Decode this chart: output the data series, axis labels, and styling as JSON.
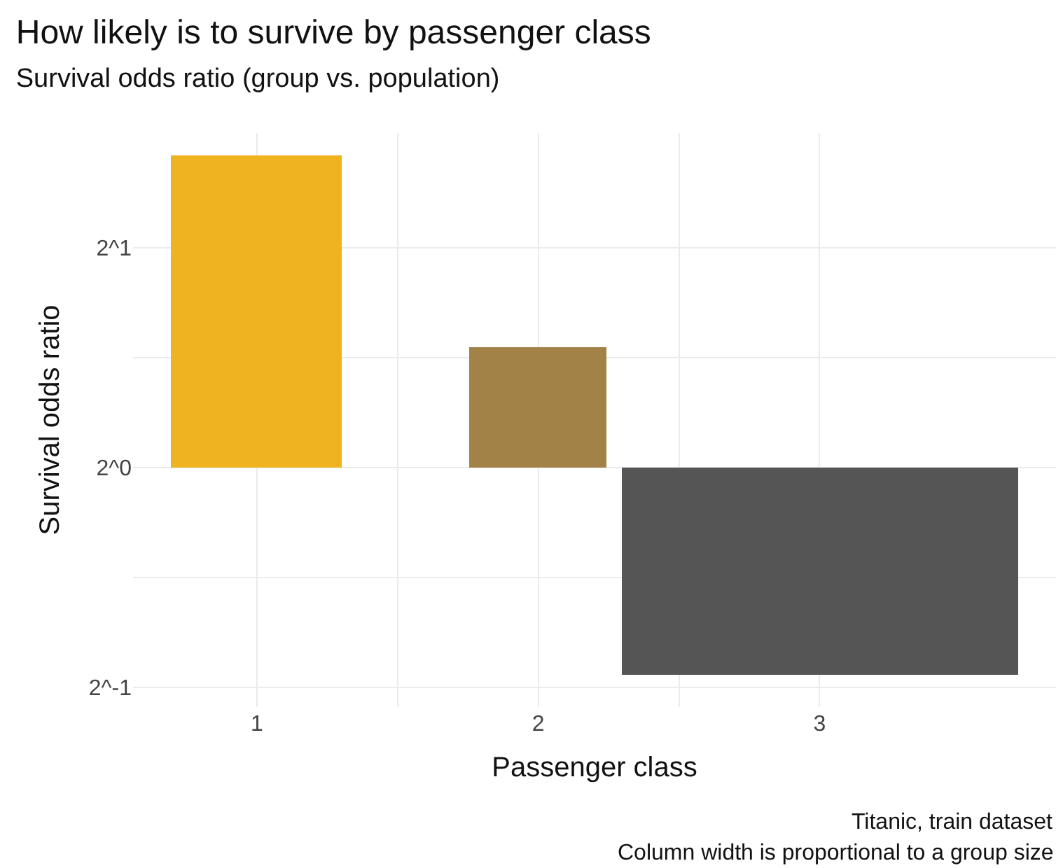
{
  "chart_data": {
    "type": "bar",
    "title": "How likely is to survive by passenger class",
    "subtitle": "Survival odds ratio (group vs. population)",
    "xlabel": "Passenger class",
    "ylabel": "Survival odds ratio",
    "categories": [
      "1",
      "2",
      "3"
    ],
    "base": [
      1,
      1,
      1
    ],
    "values": [
      1.67,
      0.46,
      -0.48
    ],
    "colors": [
      "#efb321",
      "#a38248",
      "#555555"
    ],
    "log": true,
    "ylim": [
      0.47,
      2.87
    ],
    "yticks": [
      {
        "value": 0.5,
        "label": "2^-1"
      },
      {
        "value": 0.7071,
        "label": null
      },
      {
        "value": 1,
        "label": "2^0"
      },
      {
        "value": 1.4142,
        "label": null
      },
      {
        "value": 2,
        "label": "2^1"
      }
    ],
    "grid": true,
    "annotations": [
      "Titanic, train dataset",
      "Column width is proportional to a group size"
    ]
  }
}
